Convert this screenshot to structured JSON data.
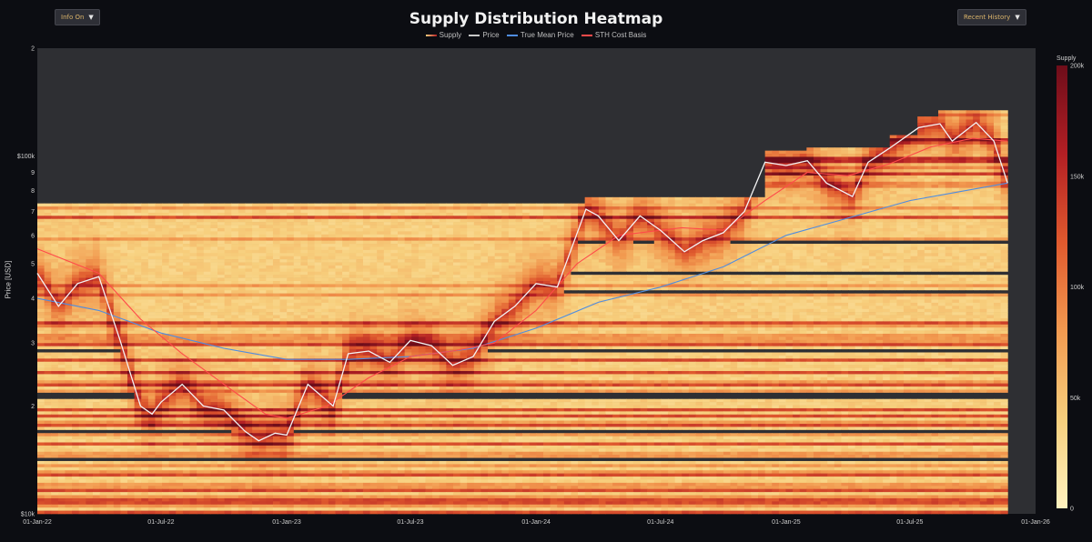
{
  "header": {
    "title": "Supply Distribution Heatmap",
    "info_button": "Info On",
    "history_button": "Recent History",
    "caret": "▼"
  },
  "legend": [
    {
      "name": "Supply",
      "color": "#e0a57a"
    },
    {
      "name": "Price",
      "color": "#c8c8c8"
    },
    {
      "name": "True Mean Price",
      "color": "#4f8de0"
    },
    {
      "name": "STH Cost Basis",
      "color": "#ff4a4a"
    }
  ],
  "chart_data": {
    "type": "heatmap",
    "title": "Supply Distribution Heatmap",
    "ylabel": "Price [USD]",
    "yscale": "log",
    "ylim": [
      10000,
      200000
    ],
    "xlim": [
      "2022-01-01",
      "2026-01-01"
    ],
    "y_tick_labels": [
      "$10k",
      "2",
      "3",
      "4",
      "5",
      "6",
      "7",
      "8",
      "9",
      "$100k",
      "2"
    ],
    "x_tick_labels": [
      "01-Jan-22",
      "01-Jul-22",
      "01-Jan-23",
      "01-Jul-23",
      "01-Jan-24",
      "01-Jul-24",
      "01-Jan-25",
      "01-Jul-25",
      "01-Jan-26"
    ],
    "colorbar": {
      "title": "Supply",
      "range": [
        0,
        200000
      ],
      "tick_labels": [
        "0",
        "50k",
        "100k",
        "150k",
        "200k"
      ],
      "colors": [
        "#fff2c0",
        "#f7cf7d",
        "#f29a50",
        "#e05a2e",
        "#b31f24",
        "#6e0d1a"
      ]
    },
    "series": [
      {
        "name": "Price",
        "x": [
          "2022-01-01",
          "2022-02-01",
          "2022-03-01",
          "2022-04-01",
          "2022-05-01",
          "2022-06-01",
          "2022-06-18",
          "2022-07-01",
          "2022-08-01",
          "2022-09-01",
          "2022-10-01",
          "2022-11-01",
          "2022-11-21",
          "2022-12-15",
          "2023-01-01",
          "2023-02-01",
          "2023-03-10",
          "2023-04-01",
          "2023-05-01",
          "2023-06-01",
          "2023-07-01",
          "2023-08-01",
          "2023-09-01",
          "2023-10-01",
          "2023-11-01",
          "2023-12-01",
          "2024-01-01",
          "2024-02-01",
          "2024-03-14",
          "2024-04-01",
          "2024-05-01",
          "2024-06-01",
          "2024-07-01",
          "2024-08-05",
          "2024-09-01",
          "2024-10-01",
          "2024-11-01",
          "2024-12-01",
          "2025-01-01",
          "2025-02-01",
          "2025-03-01",
          "2025-04-08",
          "2025-05-01",
          "2025-06-01",
          "2025-07-14",
          "2025-08-14",
          "2025-09-01",
          "2025-10-06",
          "2025-11-01",
          "2025-11-21"
        ],
        "y": [
          47000,
          38000,
          44000,
          46000,
          31000,
          20000,
          19000,
          20500,
          23000,
          20000,
          19500,
          17000,
          16000,
          16800,
          16600,
          23000,
          20000,
          28000,
          28500,
          26500,
          30500,
          29500,
          26000,
          27500,
          34500,
          38000,
          44000,
          43000,
          71000,
          68000,
          58000,
          68000,
          62000,
          54000,
          58000,
          61000,
          70000,
          96000,
          94000,
          97000,
          84000,
          77000,
          96000,
          105000,
          120000,
          123000,
          110000,
          124000,
          110000,
          84000
        ]
      },
      {
        "name": "True Mean Price",
        "x": [
          "2022-01-01",
          "2022-04-01",
          "2022-07-01",
          "2022-10-01",
          "2023-01-01",
          "2023-04-01",
          "2023-07-01",
          "2023-10-01",
          "2024-01-01",
          "2024-04-01",
          "2024-07-01",
          "2024-10-01",
          "2025-01-01",
          "2025-04-01",
          "2025-07-01",
          "2025-11-21"
        ],
        "y": [
          40000,
          37000,
          32000,
          29000,
          27000,
          27000,
          27500,
          29000,
          33000,
          39000,
          43000,
          49000,
          60000,
          67000,
          75000,
          84000
        ]
      },
      {
        "name": "STH Cost Basis",
        "x": [
          "2022-01-01",
          "2022-04-01",
          "2022-06-01",
          "2022-08-01",
          "2022-10-01",
          "2022-12-01",
          "2023-01-01",
          "2023-03-01",
          "2023-05-01",
          "2023-07-01",
          "2023-09-01",
          "2023-11-01",
          "2024-01-01",
          "2024-03-01",
          "2024-05-01",
          "2024-08-01",
          "2024-10-01",
          "2024-12-01",
          "2025-02-01",
          "2025-04-01",
          "2025-06-01",
          "2025-08-01",
          "2025-10-01",
          "2025-11-21"
        ],
        "y": [
          55000,
          47000,
          35000,
          28000,
          23000,
          19000,
          18500,
          20000,
          24000,
          27500,
          28500,
          30000,
          37000,
          50000,
          60000,
          63000,
          62000,
          75000,
          90000,
          88000,
          95000,
          106000,
          112000,
          110000
        ]
      }
    ]
  }
}
